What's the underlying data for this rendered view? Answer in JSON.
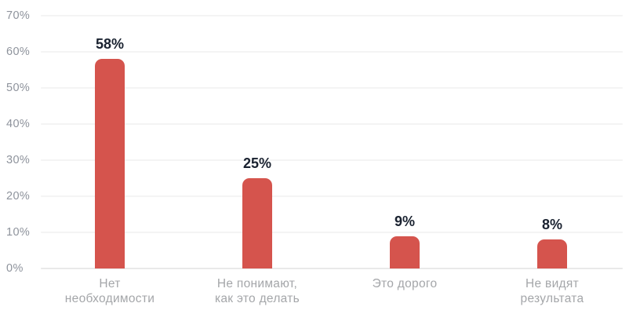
{
  "chart_data": {
    "type": "bar",
    "categories": [
      "Нет необходимости",
      "Не понимают, как это делать",
      "Это дорого",
      "Не видят результата"
    ],
    "categories_lines": [
      [
        "Нет",
        "необходимости"
      ],
      [
        "Не понимают,",
        "как это делать"
      ],
      [
        "Это дорого",
        ""
      ],
      [
        "Не видят",
        "результата"
      ]
    ],
    "values": [
      58,
      25,
      9,
      8
    ],
    "value_labels": [
      "58%",
      "25%",
      "9%",
      "8%"
    ],
    "yticks": [
      "70%",
      "60%",
      "50%",
      "40%",
      "30%",
      "20%",
      "10%",
      "0%"
    ],
    "ylim": [
      0,
      70
    ],
    "title": "",
    "xlabel": "",
    "ylabel": "",
    "grid": "horizontal",
    "legend": "none",
    "bar_color": "#d5544d",
    "value_label_color": "#1a2230",
    "ytick_color": "#8e939c",
    "category_label_color": "#a4a6a9"
  }
}
